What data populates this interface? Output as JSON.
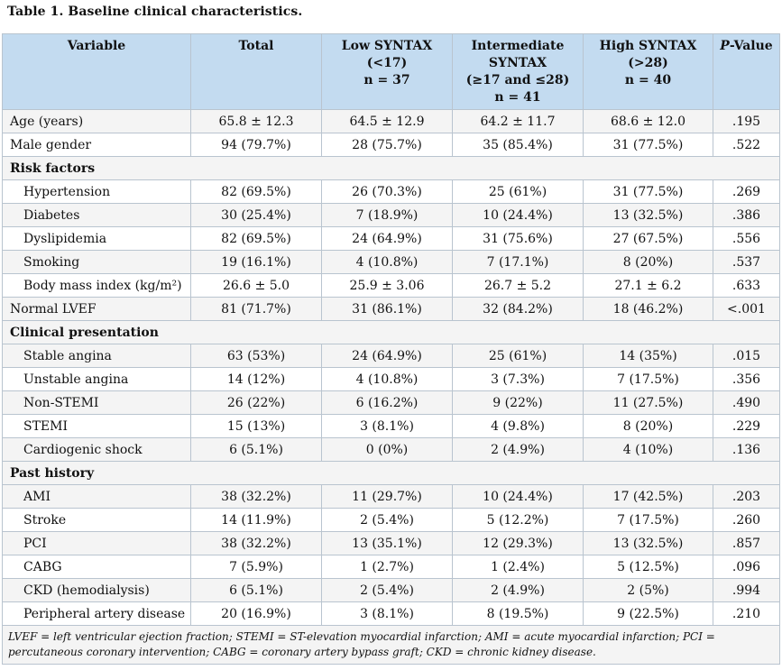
{
  "caption": "Table 1. Baseline clinical characteristics.",
  "headers": {
    "variable": "Variable",
    "total": "Total",
    "low": [
      "Low SYNTAX",
      "(<17)",
      "n = 37"
    ],
    "intermediate": [
      "Intermediate",
      "SYNTAX",
      "(≥17 and ≤28)",
      "n = 41"
    ],
    "high": [
      "High SYNTAX",
      "(>28)",
      "n = 40"
    ],
    "pvalue_p": "P",
    "pvalue_rest": "-Value"
  },
  "rows": [
    {
      "label": "Age (years)",
      "total": "65.8 ± 12.3",
      "low": "64.5 ± 12.9",
      "inter": "64.2 ± 11.7",
      "high": "68.6 ± 12.0",
      "p": ".195"
    },
    {
      "label": "Male gender",
      "total": "94 (79.7%)",
      "low": "28 (75.7%)",
      "inter": "35 (85.4%)",
      "high": "31 (77.5%)",
      "p": ".522"
    },
    {
      "section": "Risk factors"
    },
    {
      "label": "Hypertension",
      "total": "82 (69.5%)",
      "low": "26 (70.3%)",
      "inter": "25 (61%)",
      "high": "31 (77.5%)",
      "p": ".269"
    },
    {
      "label": "Diabetes",
      "total": "30 (25.4%)",
      "low": "7 (18.9%)",
      "inter": "10 (24.4%)",
      "high": "13 (32.5%)",
      "p": ".386"
    },
    {
      "label": "Dyslipidemia",
      "total": "82 (69.5%)",
      "low": "24 (64.9%)",
      "inter": "31 (75.6%)",
      "high": "27 (67.5%)",
      "p": ".556"
    },
    {
      "label": "Smoking",
      "total": "19 (16.1%)",
      "low": "4 (10.8%)",
      "inter": "7 (17.1%)",
      "high": "8 (20%)",
      "p": ".537"
    },
    {
      "label": "Body mass index (kg/m²)",
      "total": "26.6 ± 5.0",
      "low": "25.9 ± 3.06",
      "inter": "26.7 ± 5.2",
      "high": "27.1 ± 6.2",
      "p": ".633"
    },
    {
      "label": "Normal LVEF",
      "total": "81 (71.7%)",
      "low": "31 (86.1%)",
      "inter": "32 (84.2%)",
      "high": "18 (46.2%)",
      "p": "<.001"
    },
    {
      "section": "Clinical presentation"
    },
    {
      "label": "Stable angina",
      "total": "63 (53%)",
      "low": "24 (64.9%)",
      "inter": "25 (61%)",
      "high": "14 (35%)",
      "p": ".015"
    },
    {
      "label": "Unstable angina",
      "total": "14 (12%)",
      "low": "4 (10.8%)",
      "inter": "3 (7.3%)",
      "high": "7 (17.5%)",
      "p": ".356"
    },
    {
      "label": "Non-STEMI",
      "total": "26 (22%)",
      "low": "6 (16.2%)",
      "inter": "9 (22%)",
      "high": "11 (27.5%)",
      "p": ".490"
    },
    {
      "label": "STEMI",
      "total": "15 (13%)",
      "low": "3 (8.1%)",
      "inter": "4 (9.8%)",
      "high": "8 (20%)",
      "p": ".229"
    },
    {
      "label": "Cardiogenic shock",
      "total": "6 (5.1%)",
      "low": "0 (0%)",
      "inter": "2 (4.9%)",
      "high": "4 (10%)",
      "p": ".136"
    },
    {
      "section": "Past history"
    },
    {
      "label": "AMI",
      "total": "38 (32.2%)",
      "low": "11 (29.7%)",
      "inter": "10 (24.4%)",
      "high": "17 (42.5%)",
      "p": ".203"
    },
    {
      "label": "Stroke",
      "total": "14 (11.9%)",
      "low": "2 (5.4%)",
      "inter": "5 (12.2%)",
      "high": "7 (17.5%)",
      "p": ".260"
    },
    {
      "label": "PCI",
      "total": "38 (32.2%)",
      "low": "13 (35.1%)",
      "inter": "12 (29.3%)",
      "high": "13 (32.5%)",
      "p": ".857"
    },
    {
      "label": "CABG",
      "total": "7 (5.9%)",
      "low": "1 (2.7%)",
      "inter": "1 (2.4%)",
      "high": "5 (12.5%)",
      "p": ".096"
    },
    {
      "label": "CKD (hemodialysis)",
      "total": "6 (5.1%)",
      "low": "2 (5.4%)",
      "inter": "2 (4.9%)",
      "high": "2 (5%)",
      "p": ".994"
    },
    {
      "label": "Peripheral artery disease",
      "total": "20 (16.9%)",
      "low": "3 (8.1%)",
      "inter": "8 (19.5%)",
      "high": "9 (22.5%)",
      "p": ".210"
    }
  ],
  "subRows": [
    "Hypertension",
    "Diabetes",
    "Dyslipidemia",
    "Smoking",
    "Body mass index (kg/m²)",
    "Stable angina",
    "Unstable angina",
    "Non-STEMI",
    "STEMI",
    "Cardiogenic shock",
    "AMI",
    "Stroke",
    "PCI",
    "CABG",
    "CKD (hemodialysis)",
    "Peripheral artery disease"
  ],
  "footnote": "LVEF = left ventricular ejection fraction; STEMI = ST-elevation myocardial infarction; AMI = acute myocardial infarction; PCI = percutaneous coronary intervention; CABG = coronary artery bypass graft; CKD = chronic kidney disease."
}
